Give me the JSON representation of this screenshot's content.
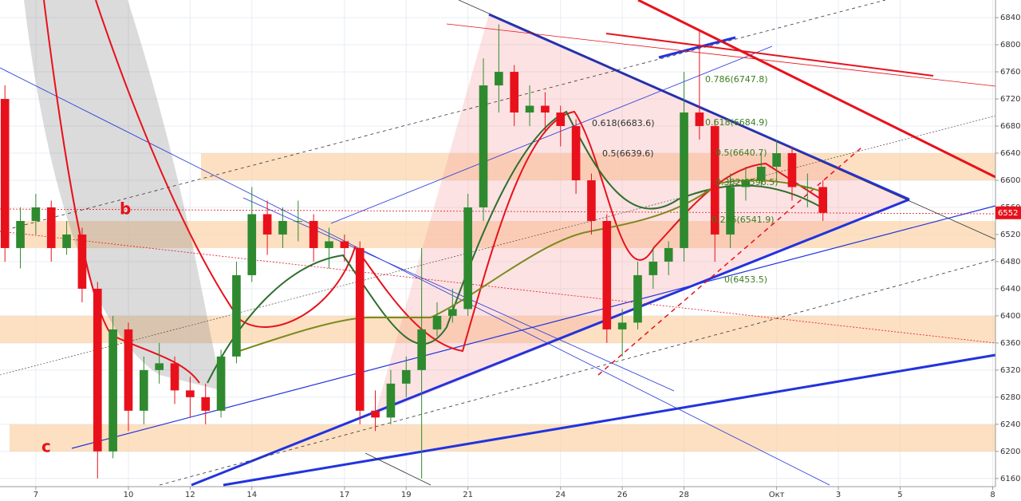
{
  "chart_data": {
    "type": "candlestick",
    "x": [
      6,
      6.5,
      7,
      7.5,
      8,
      8.5,
      9,
      9.5,
      10,
      10.5,
      11,
      11.5,
      12,
      12.5,
      13,
      13.5,
      14,
      14.5,
      15,
      15.5,
      16,
      16.5,
      17,
      17.5,
      18,
      18.5,
      19,
      19.5,
      20,
      20.5,
      21,
      21.5,
      22,
      22.5,
      23,
      23.5,
      24,
      24.5,
      25,
      25.5,
      26,
      26.5,
      27,
      27.5,
      28,
      28.5,
      29,
      29.5,
      30,
      30.5,
      31,
      31.5,
      32,
      32.5
    ],
    "open": [
      6720,
      6500,
      6540,
      6560,
      6500,
      6520,
      6440,
      6200,
      6380,
      6260,
      6320,
      6330,
      6290,
      6280,
      6260,
      6340,
      6460,
      6550,
      6520,
      6540,
      6540,
      6500,
      6510,
      6500,
      6260,
      6250,
      6300,
      6320,
      6380,
      6400,
      6410,
      6560,
      6740,
      6760,
      6700,
      6710,
      6700,
      6680,
      6600,
      6540,
      6380,
      6390,
      6460,
      6480,
      6500,
      6700,
      6680,
      6520,
      6590,
      6600,
      6620,
      6640,
      6590,
      6590
    ],
    "high": [
      6740,
      6560,
      6580,
      6570,
      6540,
      6530,
      6450,
      6400,
      6390,
      6340,
      6360,
      6340,
      6310,
      6300,
      6350,
      6480,
      6590,
      6570,
      6560,
      6570,
      6550,
      6530,
      6520,
      6510,
      6290,
      6320,
      6340,
      6500,
      6420,
      6440,
      6580,
      6780,
      6830,
      6770,
      6740,
      6730,
      6710,
      6690,
      6610,
      6550,
      6410,
      6480,
      6500,
      6510,
      6760,
      6820,
      6690,
      6610,
      6620,
      6640,
      6660,
      6650,
      6610,
      6600
    ],
    "low": [
      6480,
      6470,
      6520,
      6480,
      6490,
      6420,
      6160,
      6190,
      6230,
      6240,
      6300,
      6270,
      6250,
      6240,
      6250,
      6330,
      6450,
      6490,
      6500,
      6510,
      6480,
      6470,
      6480,
      6240,
      6230,
      6240,
      6280,
      6160,
      6370,
      6390,
      6400,
      6540,
      6700,
      6680,
      6680,
      6670,
      6650,
      6580,
      6520,
      6360,
      6340,
      6380,
      6440,
      6460,
      6480,
      6660,
      6480,
      6500,
      6570,
      6590,
      6600,
      6570,
      6560,
      6540
    ],
    "close": [
      6500,
      6540,
      6560,
      6500,
      6520,
      6440,
      6200,
      6380,
      6260,
      6320,
      6330,
      6290,
      6280,
      6260,
      6340,
      6460,
      6550,
      6520,
      6540,
      6540,
      6500,
      6510,
      6500,
      6260,
      6250,
      6300,
      6320,
      6380,
      6400,
      6410,
      6560,
      6740,
      6760,
      6700,
      6710,
      6700,
      6680,
      6600,
      6540,
      6380,
      6390,
      6460,
      6480,
      6500,
      6700,
      6680,
      6520,
      6590,
      6600,
      6620,
      6640,
      6590,
      6590,
      6552
    ],
    "up_color": "#2f8a2f",
    "down_color": "#e8111b",
    "xlim": [
      5.84,
      38.09
    ],
    "xticks": [
      7,
      10,
      12,
      14,
      17,
      19,
      21,
      24,
      26,
      28,
      {
        "value": 31,
        "label": "Окт"
      },
      {
        "value": 33,
        "label": "3"
      },
      {
        "value": 35,
        "label": "5"
      },
      {
        "value": 38,
        "label": "8"
      }
    ],
    "ylim": [
      6148,
      6866
    ],
    "yticks": [
      6160,
      6200,
      6240,
      6280,
      6320,
      6360,
      6400,
      6440,
      6480,
      6520,
      6560,
      6600,
      6640,
      6680,
      6720,
      6760,
      6800,
      6840
    ],
    "grid": true,
    "last_price": 6552,
    "annotations": [
      "0.618(6683.6)",
      "0.5(6639.6)",
      "0.786(6747.8)",
      "0.618(6684.9)",
      "0.5(6640.7)",
      "0.382(6596.5)",
      "0.236(6541.9)",
      "0(6453.5)",
      "b",
      "c"
    ]
  }
}
